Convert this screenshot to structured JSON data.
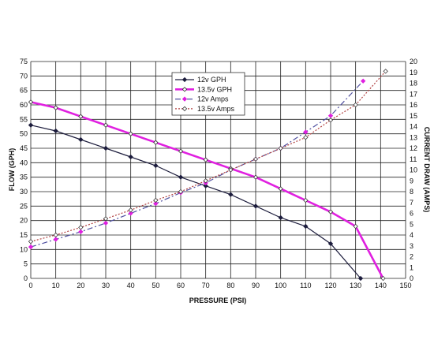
{
  "chart_data": {
    "type": "line",
    "xlabel": "PRESSURE (PSI)",
    "ylabel": "FLOW (GPH)",
    "y2label": "CURRENT DRAW (AMPS)",
    "xlim": [
      0,
      150
    ],
    "ylim": [
      0,
      75
    ],
    "y2lim": [
      0,
      20
    ],
    "x_ticks": [
      0,
      10,
      20,
      30,
      40,
      50,
      60,
      70,
      80,
      90,
      100,
      110,
      120,
      130,
      140,
      150
    ],
    "y_ticks": [
      0,
      5,
      10,
      15,
      20,
      25,
      30,
      35,
      40,
      45,
      50,
      55,
      60,
      65,
      70,
      75
    ],
    "y2_ticks": [
      0,
      1,
      2,
      3,
      4,
      5,
      6,
      7,
      8,
      9,
      10,
      11,
      12,
      13,
      14,
      15,
      16,
      17,
      18,
      19,
      20
    ],
    "grid": true,
    "legend_position": "top-center",
    "series": [
      {
        "name": "12v GPH",
        "axis": "left",
        "color": "#1c1c3c",
        "style": "solid",
        "marker": "filled-diamond",
        "x": [
          0,
          10,
          20,
          30,
          40,
          50,
          60,
          70,
          80,
          90,
          100,
          110,
          120,
          132
        ],
        "y": [
          53,
          51,
          48,
          45,
          42,
          39,
          35,
          32,
          29,
          25,
          21,
          18,
          12,
          0
        ]
      },
      {
        "name": "13.5v GPH",
        "axis": "left",
        "color": "#e020e0",
        "style": "thick-solid",
        "marker": "open-diamond",
        "x": [
          0,
          10,
          20,
          30,
          40,
          50,
          60,
          70,
          80,
          90,
          100,
          110,
          120,
          130,
          141
        ],
        "y": [
          61,
          59,
          56,
          53,
          50,
          47,
          44,
          41,
          38,
          35,
          31,
          27,
          23,
          18,
          0
        ]
      },
      {
        "name": "12v Amps",
        "axis": "right",
        "color": "#5050a0",
        "style": "dash-dot",
        "marker": "magenta-diamond",
        "x": [
          0,
          10,
          20,
          30,
          40,
          50,
          60,
          70,
          80,
          90,
          100,
          110,
          120,
          133
        ],
        "y": [
          2.9,
          3.6,
          4.3,
          5.1,
          6.0,
          6.9,
          7.9,
          8.8,
          10.0,
          11.0,
          12.0,
          13.5,
          15.0,
          18.2
        ]
      },
      {
        "name": "13.5v Amps",
        "axis": "right",
        "color": "#b04040",
        "style": "dotted",
        "marker": "open-diamond",
        "x": [
          0,
          10,
          20,
          30,
          40,
          50,
          60,
          70,
          80,
          90,
          100,
          110,
          120,
          130,
          142
        ],
        "y": [
          3.4,
          4.0,
          4.7,
          5.5,
          6.3,
          7.2,
          8.0,
          9.0,
          10.0,
          11.0,
          12.0,
          13.0,
          14.6,
          16.0,
          19.1
        ]
      }
    ]
  }
}
